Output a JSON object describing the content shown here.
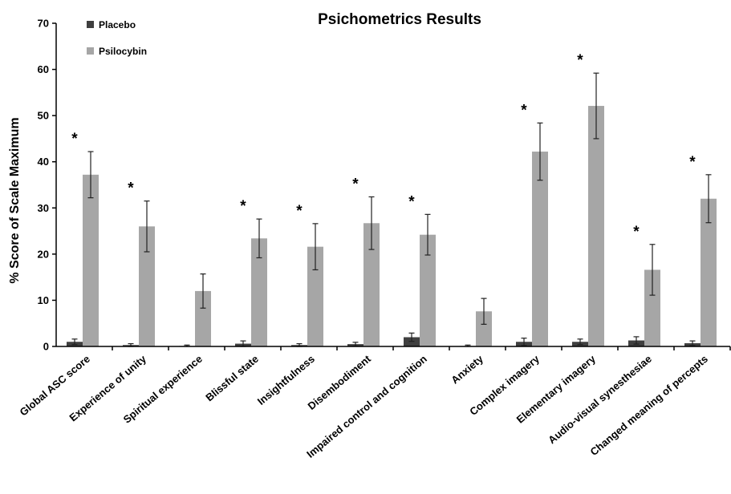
{
  "chart_data": {
    "type": "bar",
    "title": "Psichometrics Results",
    "xlabel": "",
    "ylabel": "% Score of Scale Maximum",
    "ylim": [
      0,
      70
    ],
    "yticks": [
      0,
      10,
      20,
      30,
      40,
      50,
      60,
      70
    ],
    "grid": false,
    "legend_position": "top-left",
    "categories": [
      "Global ASC score",
      "Experience of unity",
      "Spiritual experience",
      "Blissful state",
      "Insightfulness",
      "Disembodiment",
      "Impaired control and cognition",
      "Anxiety",
      "Complex imagery",
      "Elementary imagery",
      "Audio-visual synesthesiae",
      "Changed meaning of percepts"
    ],
    "series": [
      {
        "name": "Placebo",
        "color": "#3f3f3f",
        "values": [
          1.0,
          0.3,
          0.1,
          0.6,
          0.3,
          0.5,
          2.0,
          0.1,
          1.0,
          1.0,
          1.3,
          0.7
        ],
        "errors": [
          0.6,
          0.3,
          0.2,
          0.6,
          0.3,
          0.4,
          0.9,
          0.2,
          0.8,
          0.6,
          0.8,
          0.5
        ]
      },
      {
        "name": "Psilocybin",
        "color": "#a6a6a6",
        "values": [
          37.2,
          26.0,
          12.0,
          23.4,
          21.6,
          26.7,
          24.2,
          7.6,
          42.2,
          52.1,
          16.6,
          32.0
        ],
        "errors": [
          5.0,
          5.5,
          3.7,
          4.2,
          5.0,
          5.7,
          4.4,
          2.8,
          6.2,
          7.1,
          5.5,
          5.2
        ]
      }
    ],
    "significance_marker": "*",
    "significant": [
      true,
      true,
      false,
      true,
      true,
      true,
      true,
      false,
      true,
      true,
      true,
      true
    ]
  }
}
